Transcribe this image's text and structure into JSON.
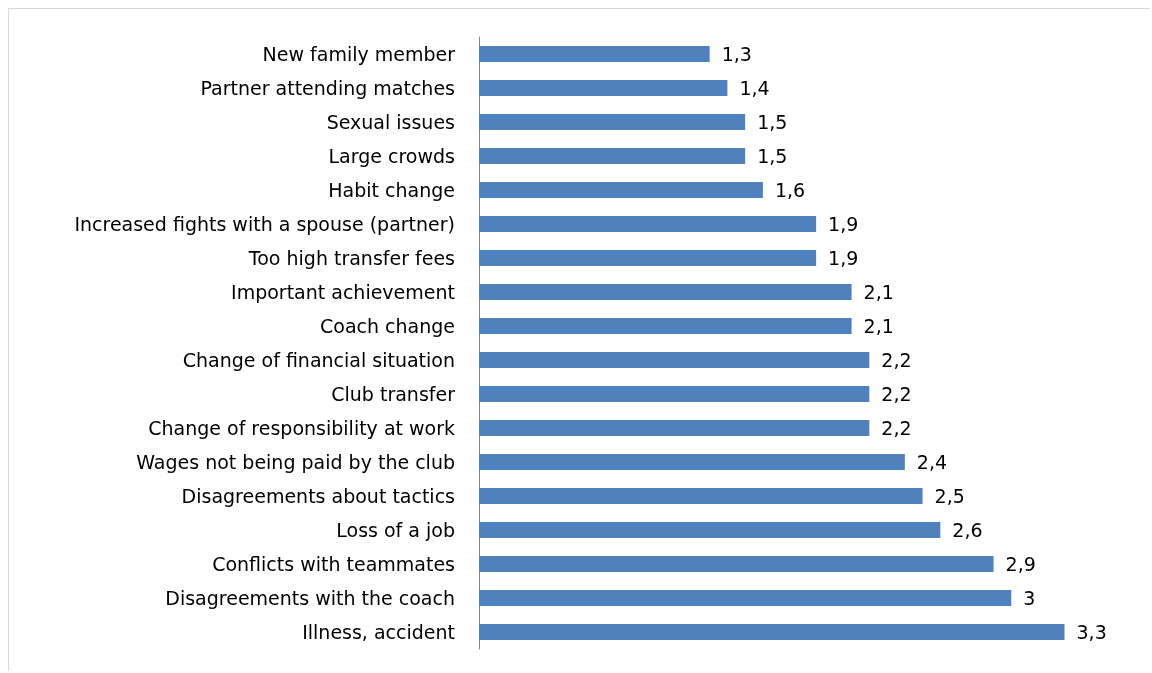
{
  "chart_data": {
    "type": "bar",
    "orientation": "horizontal",
    "categories": [
      "New family member",
      "Partner attending matches",
      "Sexual issues",
      "Large crowds",
      "Habit change",
      "Increased fights with a spouse (partner)",
      "Too high transfer fees",
      "Important achievement",
      "Coach change",
      "Change of financial situation",
      "Club transfer",
      "Change of responsibility at work",
      "Wages not being paid by the club",
      "Disagreements about tactics",
      "Loss of a job",
      "Conflicts with teammates",
      "Disagreements with the coach",
      "Illness, accident"
    ],
    "values": [
      1.3,
      1.4,
      1.5,
      1.5,
      1.6,
      1.9,
      1.9,
      2.1,
      2.1,
      2.2,
      2.2,
      2.2,
      2.4,
      2.5,
      2.6,
      2.9,
      3,
      3.3
    ],
    "value_labels": [
      "1,3",
      "1,4",
      "1,5",
      "1,5",
      "1,6",
      "1,9",
      "1,9",
      "2,1",
      "2,1",
      "2,2",
      "2,2",
      "2,2",
      "2,4",
      "2,5",
      "2,6",
      "2,9",
      "3",
      "3,3"
    ],
    "color": "#4f81bd"
  }
}
